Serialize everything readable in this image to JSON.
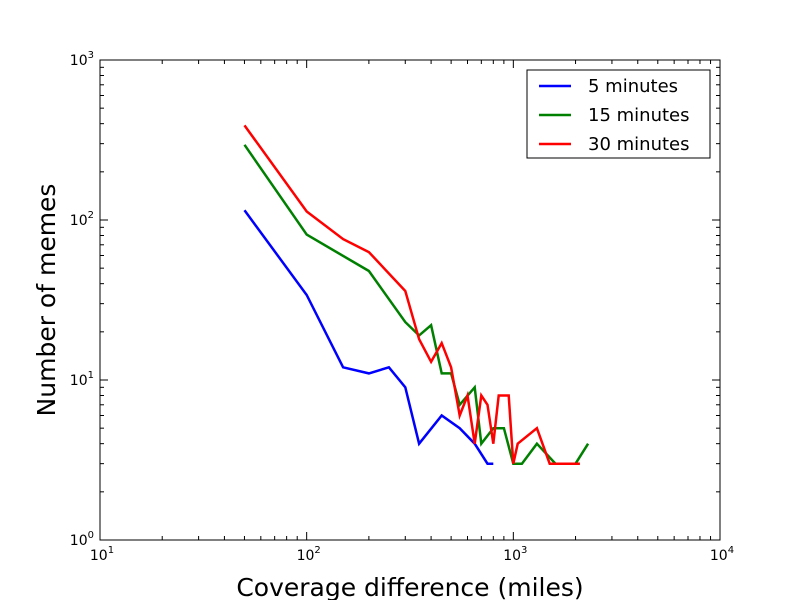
{
  "chart_data": {
    "type": "line",
    "title": "",
    "xlabel": "Coverage difference (miles)",
    "ylabel": "Number of memes",
    "xscale": "log",
    "yscale": "log",
    "xlim": [
      10,
      10000
    ],
    "ylim": [
      1,
      1000
    ],
    "x_ticks": [
      {
        "base": "10",
        "exp": "1"
      },
      {
        "base": "10",
        "exp": "2"
      },
      {
        "base": "10",
        "exp": "3"
      },
      {
        "base": "10",
        "exp": "4"
      }
    ],
    "y_ticks": [
      {
        "base": "10",
        "exp": "0"
      },
      {
        "base": "10",
        "exp": "1"
      },
      {
        "base": "10",
        "exp": "2"
      },
      {
        "base": "10",
        "exp": "3"
      }
    ],
    "grid": false,
    "legend_position": "top-right",
    "series": [
      {
        "name": "5 minutes",
        "color": "#0000ff",
        "points": [
          [
            50,
            115
          ],
          [
            100,
            34
          ],
          [
            150,
            12
          ],
          [
            200,
            11
          ],
          [
            250,
            12
          ],
          [
            300,
            9
          ],
          [
            350,
            4
          ],
          [
            450,
            6
          ],
          [
            550,
            5
          ],
          [
            650,
            4
          ],
          [
            750,
            3
          ],
          [
            800,
            3
          ]
        ]
      },
      {
        "name": "15 minutes",
        "color": "#008000",
        "points": [
          [
            50,
            295
          ],
          [
            100,
            81
          ],
          [
            200,
            48
          ],
          [
            300,
            23
          ],
          [
            350,
            19
          ],
          [
            400,
            22
          ],
          [
            450,
            11
          ],
          [
            500,
            11
          ],
          [
            550,
            7
          ],
          [
            650,
            9
          ],
          [
            700,
            4
          ],
          [
            800,
            5
          ],
          [
            900,
            5
          ],
          [
            1000,
            3
          ],
          [
            1100,
            3
          ],
          [
            1300,
            4
          ],
          [
            1600,
            3
          ],
          [
            2000,
            3
          ],
          [
            2300,
            4
          ]
        ]
      },
      {
        "name": "30 minutes",
        "color": "#ff0000",
        "points": [
          [
            50,
            390
          ],
          [
            100,
            113
          ],
          [
            150,
            76
          ],
          [
            200,
            63
          ],
          [
            300,
            36
          ],
          [
            350,
            18
          ],
          [
            400,
            13
          ],
          [
            450,
            17
          ],
          [
            500,
            12
          ],
          [
            550,
            6
          ],
          [
            600,
            8
          ],
          [
            650,
            4
          ],
          [
            700,
            8
          ],
          [
            750,
            7
          ],
          [
            800,
            4
          ],
          [
            850,
            8
          ],
          [
            950,
            8
          ],
          [
            1000,
            3
          ],
          [
            1050,
            4
          ],
          [
            1300,
            5
          ],
          [
            1500,
            3
          ],
          [
            2100,
            3
          ]
        ]
      }
    ]
  }
}
